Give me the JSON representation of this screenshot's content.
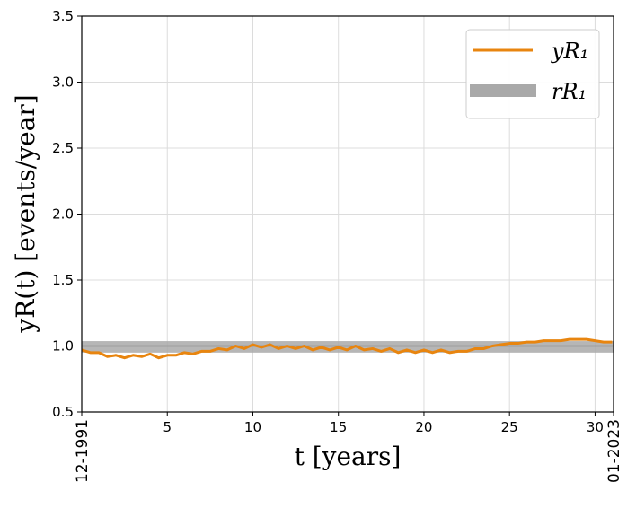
{
  "chart_data": {
    "type": "line",
    "xlabel": "t  [years]",
    "ylabel": "yR(t)  [events/year]",
    "xlim": [
      0,
      31.08
    ],
    "ylim": [
      0.5,
      3.5
    ],
    "xticks": [
      {
        "value": 0,
        "label": "12-1991"
      },
      5,
      10,
      15,
      20,
      25,
      30,
      {
        "value": 31.08,
        "label": "01-2023"
      }
    ],
    "yticks": [
      0.5,
      {
        "value": 1,
        "label": "1.0"
      },
      1.5,
      {
        "value": 2,
        "label": "2.0"
      },
      2.5,
      {
        "value": 3,
        "label": "3.0"
      },
      3.5
    ],
    "grid": true,
    "legend": "upper right",
    "x": [
      0,
      0.5,
      1,
      1.5,
      2,
      2.5,
      3,
      3.5,
      4,
      4.5,
      5,
      5.5,
      6,
      6.5,
      7,
      7.5,
      8,
      8.5,
      9,
      9.5,
      10,
      10.5,
      11,
      11.5,
      12,
      12.5,
      13,
      13.5,
      14,
      14.5,
      15,
      15.5,
      16,
      16.5,
      17,
      17.5,
      18,
      18.5,
      19,
      19.5,
      20,
      20.5,
      21,
      21.5,
      22,
      22.5,
      23,
      23.5,
      24,
      24.5,
      25,
      25.5,
      26,
      26.5,
      27,
      27.5,
      28,
      28.5,
      29,
      29.5,
      30,
      30.5,
      31
    ],
    "series": [
      {
        "name": "yR₁",
        "color": "#e8850f",
        "values": [
          0.97,
          0.95,
          0.95,
          0.92,
          0.93,
          0.91,
          0.93,
          0.92,
          0.94,
          0.91,
          0.93,
          0.93,
          0.95,
          0.94,
          0.96,
          0.96,
          0.98,
          0.97,
          1.0,
          0.98,
          1.01,
          0.99,
          1.01,
          0.98,
          1.0,
          0.98,
          1.0,
          0.97,
          0.99,
          0.97,
          0.99,
          0.97,
          1.0,
          0.97,
          0.98,
          0.96,
          0.98,
          0.95,
          0.97,
          0.95,
          0.97,
          0.95,
          0.97,
          0.95,
          0.96,
          0.96,
          0.98,
          0.98,
          1.0,
          1.01,
          1.02,
          1.02,
          1.03,
          1.03,
          1.04,
          1.04,
          1.04,
          1.05,
          1.05,
          1.05,
          1.04,
          1.03,
          1.03
        ]
      }
    ],
    "reference": {
      "name": "rR₁",
      "color": "#a9a9a9",
      "line_color": "#888888",
      "value": 1.0,
      "band": [
        0.95,
        1.037
      ]
    }
  }
}
